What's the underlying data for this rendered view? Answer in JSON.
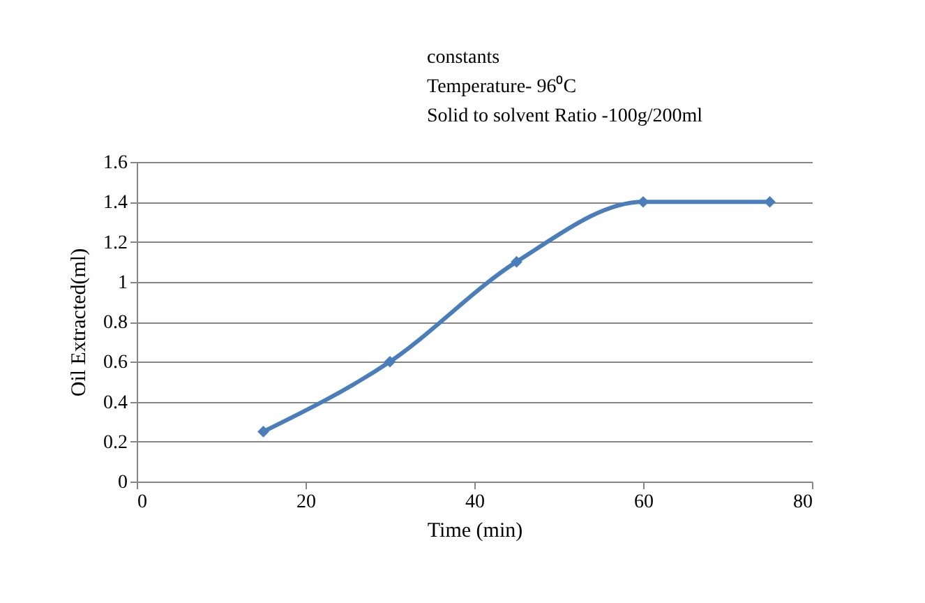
{
  "chart_data": {
    "type": "line",
    "xlabel": "Time (min)",
    "ylabel": "Oil Extracted(ml)",
    "annotations": [
      "constants",
      "Temperature- 96⁰C",
      "Solid to solvent Ratio -100g/200ml"
    ],
    "x": [
      15,
      30,
      45,
      60,
      75
    ],
    "series": [
      {
        "color": "#4a7ebb",
        "values": [
          0.25,
          0.6,
          1.1,
          1.4,
          1.4
        ]
      }
    ],
    "xlim": [
      0,
      80
    ],
    "xticks": [
      0,
      20,
      40,
      60,
      80
    ],
    "ylim": [
      0,
      1.6
    ],
    "yticks": [
      0,
      0.2,
      0.4,
      0.6,
      0.8,
      1,
      1.2,
      1.4,
      1.6
    ],
    "grid": "y",
    "marker": "diamond",
    "line_style": "solid"
  }
}
